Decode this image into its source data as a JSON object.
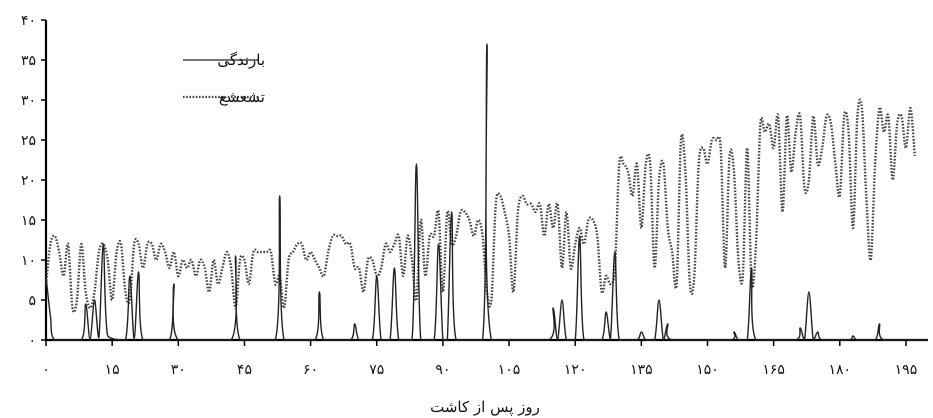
{
  "chart_data": {
    "type": "line",
    "title": "",
    "xlabel": "روز پس از کاشت",
    "ylabel": "",
    "xlim": [
      0,
      200
    ],
    "ylim": [
      0,
      40
    ],
    "x_ticks": [
      0,
      15,
      30,
      45,
      60,
      75,
      90,
      105,
      120,
      135,
      150,
      165,
      180,
      195
    ],
    "x_tick_labels": [
      "۰",
      "۱۵",
      "۳۰",
      "۴۵",
      "۶۰",
      "۷۵",
      "۹۰",
      "۱۰۵",
      "۱۲۰",
      "۱۳۵",
      "۱۵۰",
      "۱۶۵",
      "۱۸۰",
      "۱۹۵"
    ],
    "y_ticks": [
      0,
      5,
      10,
      15,
      20,
      25,
      30,
      35,
      40
    ],
    "y_tick_labels": [
      "۰",
      "۵",
      "۱۰",
      "۱۵",
      "۲۰",
      "۲۵",
      "۳۰",
      "۳۵",
      "۴۰"
    ],
    "grid": false,
    "legend_position": "top-left",
    "series": [
      {
        "name": "بارندگی",
        "style": "solid",
        "color": "#222222",
        "points": [
          [
            0,
            8
          ],
          [
            1,
            3
          ],
          [
            2,
            0
          ],
          [
            8,
            0
          ],
          [
            9,
            4.5
          ],
          [
            10,
            0
          ],
          [
            11,
            5
          ],
          [
            12,
            0.3
          ],
          [
            13,
            12
          ],
          [
            14,
            0.5
          ],
          [
            18,
            0
          ],
          [
            19,
            8
          ],
          [
            20,
            0.2
          ],
          [
            21,
            8.5
          ],
          [
            22,
            0
          ],
          [
            28,
            0
          ],
          [
            29,
            7
          ],
          [
            30,
            0
          ],
          [
            42,
            0
          ],
          [
            43,
            10.5
          ],
          [
            44,
            0
          ],
          [
            52,
            0
          ],
          [
            53,
            18
          ],
          [
            54,
            0
          ],
          [
            61,
            0
          ],
          [
            62,
            6
          ],
          [
            63,
            0
          ],
          [
            69,
            0
          ],
          [
            70,
            2
          ],
          [
            71,
            0
          ],
          [
            74,
            0
          ],
          [
            75,
            8
          ],
          [
            76,
            0
          ],
          [
            78,
            0
          ],
          [
            79,
            9
          ],
          [
            80,
            0
          ],
          [
            83,
            0
          ],
          [
            84,
            22
          ],
          [
            85,
            0
          ],
          [
            88,
            0
          ],
          [
            89,
            12
          ],
          [
            90,
            0
          ],
          [
            91,
            0
          ],
          [
            92,
            16
          ],
          [
            93,
            0
          ],
          [
            99,
            0
          ],
          [
            100,
            37
          ],
          [
            101,
            0
          ],
          [
            114,
            0
          ],
          [
            115,
            4
          ],
          [
            116,
            0
          ],
          [
            117,
            5
          ],
          [
            118,
            0
          ],
          [
            120,
            0
          ],
          [
            121,
            13
          ],
          [
            122,
            0
          ],
          [
            126,
            0
          ],
          [
            127,
            3.5
          ],
          [
            128,
            0.2
          ],
          [
            129,
            11
          ],
          [
            130,
            0
          ],
          [
            134,
            0
          ],
          [
            135,
            1
          ],
          [
            136,
            0
          ],
          [
            138,
            0
          ],
          [
            139,
            5
          ],
          [
            140,
            0
          ],
          [
            141,
            2
          ],
          [
            142,
            0
          ],
          [
            155,
            0
          ],
          [
            156,
            1
          ],
          [
            157,
            0
          ],
          [
            159,
            0
          ],
          [
            160,
            9
          ],
          [
            161,
            0
          ],
          [
            170,
            0
          ],
          [
            171,
            1.5
          ],
          [
            172,
            0
          ],
          [
            173,
            6
          ],
          [
            174,
            0
          ],
          [
            175,
            1
          ],
          [
            176,
            0
          ],
          [
            182,
            0
          ],
          [
            183,
            0.5
          ],
          [
            184,
            0
          ],
          [
            188,
            0
          ],
          [
            189,
            2
          ],
          [
            190,
            0
          ],
          [
            200,
            0
          ]
        ]
      },
      {
        "name": "تشعشع",
        "style": "dotted",
        "color": "#444444",
        "points": [
          [
            0,
            7
          ],
          [
            1,
            12
          ],
          [
            2,
            13
          ],
          [
            3,
            11
          ],
          [
            4,
            8
          ],
          [
            5,
            12
          ],
          [
            6,
            4
          ],
          [
            7,
            5
          ],
          [
            8,
            12
          ],
          [
            9,
            6
          ],
          [
            10,
            4
          ],
          [
            11,
            6
          ],
          [
            12,
            11
          ],
          [
            13,
            12
          ],
          [
            14,
            10
          ],
          [
            15,
            5
          ],
          [
            16,
            11
          ],
          [
            17,
            12
          ],
          [
            18,
            6
          ],
          [
            19,
            5
          ],
          [
            20,
            12
          ],
          [
            21,
            12
          ],
          [
            22,
            9
          ],
          [
            23,
            12
          ],
          [
            24,
            12
          ],
          [
            25,
            10
          ],
          [
            26,
            12
          ],
          [
            27,
            11
          ],
          [
            28,
            9
          ],
          [
            29,
            11
          ],
          [
            30,
            8
          ],
          [
            31,
            10
          ],
          [
            32,
            9
          ],
          [
            33,
            10
          ],
          [
            34,
            8
          ],
          [
            35,
            10
          ],
          [
            36,
            9
          ],
          [
            37,
            6
          ],
          [
            38,
            10
          ],
          [
            39,
            7
          ],
          [
            40,
            9
          ],
          [
            41,
            11
          ],
          [
            42,
            9
          ],
          [
            43,
            4
          ],
          [
            44,
            10
          ],
          [
            45,
            10
          ],
          [
            46,
            7
          ],
          [
            47,
            11
          ],
          [
            48,
            11
          ],
          [
            49,
            11
          ],
          [
            50,
            11
          ],
          [
            51,
            11
          ],
          [
            52,
            7
          ],
          [
            53,
            8
          ],
          [
            54,
            4
          ],
          [
            55,
            10
          ],
          [
            56,
            11
          ],
          [
            57,
            12
          ],
          [
            58,
            12
          ],
          [
            59,
            10
          ],
          [
            60,
            11
          ],
          [
            61,
            10
          ],
          [
            62,
            9
          ],
          [
            63,
            8
          ],
          [
            64,
            11
          ],
          [
            65,
            13
          ],
          [
            66,
            13
          ],
          [
            67,
            13
          ],
          [
            68,
            12
          ],
          [
            69,
            12
          ],
          [
            70,
            9
          ],
          [
            71,
            9
          ],
          [
            72,
            6
          ],
          [
            73,
            10
          ],
          [
            74,
            10
          ],
          [
            75,
            8
          ],
          [
            76,
            9
          ],
          [
            77,
            12
          ],
          [
            78,
            11
          ],
          [
            79,
            12
          ],
          [
            80,
            13
          ],
          [
            81,
            8
          ],
          [
            82,
            13
          ],
          [
            83,
            10
          ],
          [
            84,
            5
          ],
          [
            85,
            15
          ],
          [
            86,
            8
          ],
          [
            87,
            13
          ],
          [
            88,
            13
          ],
          [
            89,
            16
          ],
          [
            90,
            6
          ],
          [
            91,
            16
          ],
          [
            92,
            12
          ],
          [
            93,
            13
          ],
          [
            94,
            16
          ],
          [
            95,
            16
          ],
          [
            96,
            15
          ],
          [
            97,
            13
          ],
          [
            98,
            15
          ],
          [
            99,
            13
          ],
          [
            100,
            6
          ],
          [
            101,
            5
          ],
          [
            102,
            17
          ],
          [
            103,
            18
          ],
          [
            104,
            16
          ],
          [
            105,
            13
          ],
          [
            106,
            6
          ],
          [
            107,
            16
          ],
          [
            108,
            18
          ],
          [
            109,
            17
          ],
          [
            110,
            17
          ],
          [
            111,
            16
          ],
          [
            112,
            17
          ],
          [
            113,
            13
          ],
          [
            114,
            17
          ],
          [
            115,
            14
          ],
          [
            116,
            17
          ],
          [
            117,
            9
          ],
          [
            118,
            16
          ],
          [
            119,
            9
          ],
          [
            120,
            12
          ],
          [
            121,
            14
          ],
          [
            122,
            12
          ],
          [
            123,
            15
          ],
          [
            124,
            15
          ],
          [
            125,
            13
          ],
          [
            126,
            6
          ],
          [
            127,
            8
          ],
          [
            128,
            7
          ],
          [
            129,
            9
          ],
          [
            130,
            22
          ],
          [
            131,
            22
          ],
          [
            132,
            21
          ],
          [
            133,
            18
          ],
          [
            134,
            22
          ],
          [
            135,
            14
          ],
          [
            136,
            22
          ],
          [
            137,
            22
          ],
          [
            138,
            9
          ],
          [
            139,
            20
          ],
          [
            140,
            22
          ],
          [
            141,
            14
          ],
          [
            142,
            11
          ],
          [
            143,
            7
          ],
          [
            144,
            25
          ],
          [
            145,
            21
          ],
          [
            146,
            7
          ],
          [
            147,
            8
          ],
          [
            148,
            22
          ],
          [
            149,
            24
          ],
          [
            150,
            22
          ],
          [
            151,
            25
          ],
          [
            152,
            25
          ],
          [
            153,
            24
          ],
          [
            154,
            9
          ],
          [
            155,
            23
          ],
          [
            156,
            21
          ],
          [
            157,
            10
          ],
          [
            158,
            8
          ],
          [
            159,
            24
          ],
          [
            160,
            7
          ],
          [
            161,
            12
          ],
          [
            162,
            27
          ],
          [
            163,
            26
          ],
          [
            164,
            27
          ],
          [
            165,
            24
          ],
          [
            166,
            28
          ],
          [
            167,
            16
          ],
          [
            168,
            28
          ],
          [
            169,
            21
          ],
          [
            170,
            26
          ],
          [
            171,
            28
          ],
          [
            172,
            19
          ],
          [
            173,
            20
          ],
          [
            174,
            28
          ],
          [
            175,
            22
          ],
          [
            176,
            24
          ],
          [
            177,
            28
          ],
          [
            178,
            27
          ],
          [
            179,
            22
          ],
          [
            180,
            18
          ],
          [
            181,
            28
          ],
          [
            182,
            26
          ],
          [
            183,
            14
          ],
          [
            184,
            28
          ],
          [
            185,
            29
          ],
          [
            186,
            18
          ],
          [
            187,
            10
          ],
          [
            188,
            22
          ],
          [
            189,
            29
          ],
          [
            190,
            26
          ],
          [
            191,
            28
          ],
          [
            192,
            20
          ],
          [
            193,
            27
          ],
          [
            194,
            28
          ],
          [
            195,
            24
          ],
          [
            196,
            29
          ],
          [
            197,
            23
          ]
        ]
      }
    ]
  }
}
